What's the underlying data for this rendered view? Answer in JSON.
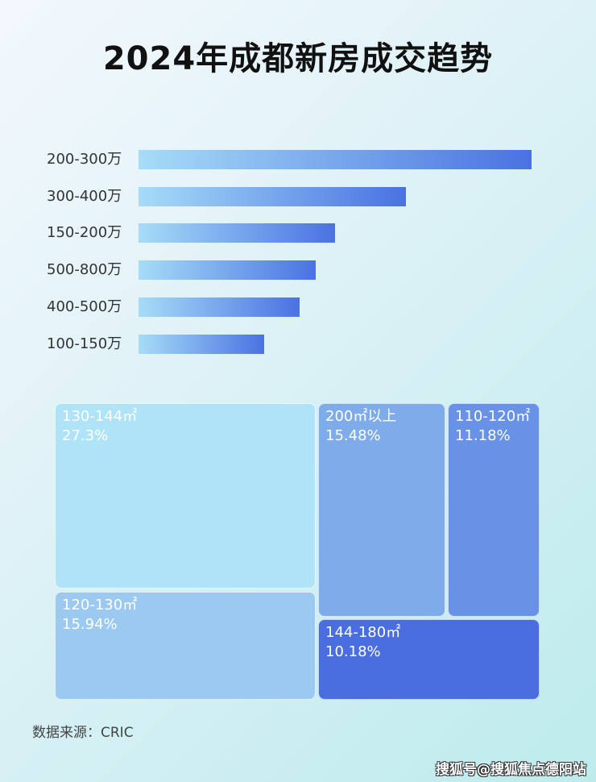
{
  "chart_data": [
    {
      "type": "bar",
      "orientation": "horizontal",
      "title": "2024年成都新房成交趋势",
      "categories": [
        "200-300万",
        "300-400万",
        "150-200万",
        "500-800万",
        "400-500万",
        "100-150万"
      ],
      "values": [
        100,
        68,
        50,
        45,
        41,
        32
      ],
      "value_note": "relative bar length, no values printed",
      "grid": false
    },
    {
      "type": "treemap",
      "items": [
        {
          "label": "130-144㎡",
          "value": "27.3%",
          "color": "#aee3f8"
        },
        {
          "label": "120-130㎡",
          "value": "15.94%",
          "color": "#9cc9f0"
        },
        {
          "label": "200㎡以上",
          "value": "15.48%",
          "color": "#7eabea"
        },
        {
          "label": "110-120㎡",
          "value": "11.18%",
          "color": "#6892e6"
        },
        {
          "label": "144-180㎡",
          "value": "10.18%",
          "color": "#4a6ee0"
        }
      ]
    }
  ],
  "source": "数据来源：CRIC",
  "watermark": "搜狐号@搜狐焦点德阳站"
}
